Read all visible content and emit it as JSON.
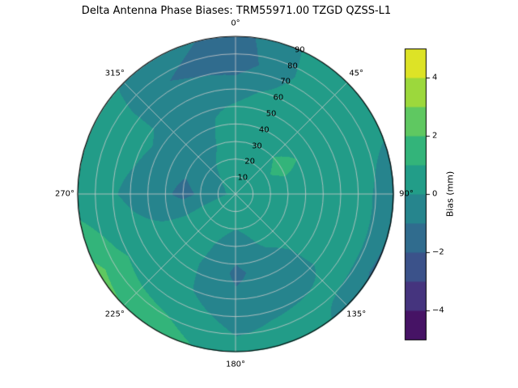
{
  "title": "Delta Antenna Phase Biases: TRM55971.00     TZGD QZSS-L1",
  "chart_data": {
    "type": "heatmap",
    "subtype": "polar_filled_contour",
    "antenna": "TRM55971.00",
    "signal": "TZGD QZSS-L1",
    "azimuth_ticks_deg": [
      0,
      45,
      90,
      135,
      180,
      225,
      270,
      315
    ],
    "azimuth_tick_labels": [
      "0°",
      "45°",
      "90°",
      "135°",
      "180°",
      "225°",
      "270°",
      "315°"
    ],
    "radial_ticks_deg": [
      10,
      20,
      30,
      40,
      50,
      60,
      70,
      80,
      90
    ],
    "radial_tick_labels": [
      "10",
      "20",
      "30",
      "40",
      "50",
      "60",
      "70",
      "80",
      "90"
    ],
    "radial_max_deg": 90,
    "radial_label_angle_deg": 24,
    "grid_on": true,
    "grid_color": "#cccccc",
    "colorbar": {
      "label": "Bias (mm)",
      "vmin": -5,
      "vmax": 5,
      "level_step": 1,
      "tick_values": [
        -4,
        -2,
        0,
        2,
        4
      ],
      "tick_labels": [
        "−4",
        "−2",
        "0",
        "2",
        "4"
      ],
      "colormap": "viridis",
      "position": "right"
    },
    "viridis_stops": [
      "#440154",
      "#482475",
      "#414487",
      "#355f8d",
      "#2a788e",
      "#21918c",
      "#22a884",
      "#44bf70",
      "#7ad151",
      "#bddf26",
      "#fde725"
    ],
    "grid": {
      "azimuth_deg": [
        0,
        30,
        60,
        90,
        120,
        150,
        180,
        210,
        240,
        270,
        300,
        330
      ],
      "zenith_deg": [
        0,
        15,
        30,
        45,
        60,
        75,
        90
      ],
      "bias_mm": [
        [
          0.5,
          0.5,
          0.5,
          0.3,
          -0.3,
          -1.6,
          -1.4
        ],
        [
          0.5,
          0.6,
          0.8,
          0.6,
          0.4,
          0.2,
          0.3
        ],
        [
          0.5,
          0.8,
          1.2,
          0.9,
          0.5,
          0.4,
          0.4
        ],
        [
          0.5,
          0.6,
          0.6,
          0.5,
          0.4,
          0.2,
          -0.8
        ],
        [
          0.5,
          0.5,
          0.4,
          0.4,
          0.4,
          0.3,
          -1.2
        ],
        [
          0.5,
          0.4,
          0.2,
          -0.4,
          -0.6,
          0.2,
          0.4
        ],
        [
          0.5,
          0.3,
          -0.6,
          -1.2,
          -0.8,
          -0.2,
          0.3
        ],
        [
          0.5,
          0.4,
          0.2,
          0.1,
          0.2,
          0.8,
          1.6
        ],
        [
          0.5,
          0.5,
          0.4,
          0.3,
          0.5,
          1.2,
          2.3
        ],
        [
          0.3,
          -0.6,
          -1.3,
          -0.6,
          -0.2,
          0.2,
          0.4
        ],
        [
          0.4,
          -0.4,
          -0.8,
          -0.4,
          0.2,
          0.4,
          0.4
        ],
        [
          0.5,
          0.2,
          -0.2,
          -0.3,
          -0.5,
          -1.0,
          -0.6
        ]
      ]
    }
  }
}
